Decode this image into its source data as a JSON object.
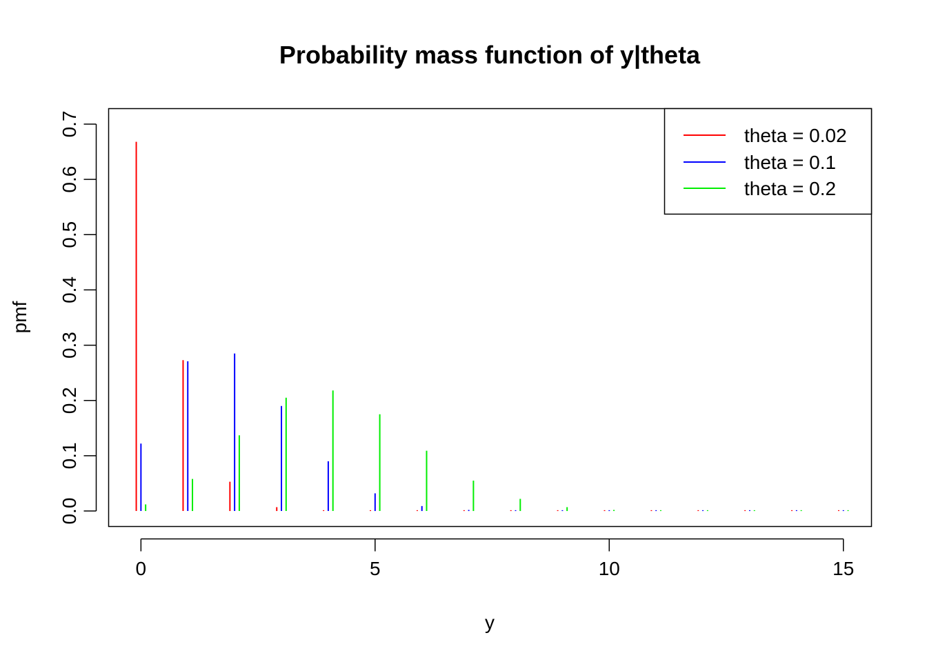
{
  "chart_data": {
    "type": "bar",
    "title": "Probability mass function of y|theta",
    "xlabel": "y",
    "ylabel": "pmf",
    "xlim": [
      -0.69,
      15.6
    ],
    "ylim": [
      -0.028,
      0.728
    ],
    "x_ticks": [
      "0",
      "5",
      "10",
      "15"
    ],
    "y_ticks": [
      "0.0",
      "0.1",
      "0.2",
      "0.3",
      "0.4",
      "0.5",
      "0.6",
      "0.7"
    ],
    "x": [
      0,
      1,
      2,
      3,
      4,
      5,
      6,
      7,
      8,
      9,
      10,
      11,
      12,
      13,
      14,
      15
    ],
    "legend_position": "top-right",
    "series": [
      {
        "name": "theta = 0.02",
        "color": "#ff0000",
        "values": [
          0.668,
          0.273,
          0.053,
          0.007,
          0.001,
          0.0,
          0.0,
          0.0,
          0.0,
          0.0,
          0.0,
          0.0,
          0.0,
          0.0,
          0.0,
          0.0
        ]
      },
      {
        "name": "theta = 0.1",
        "color": "#0000ff",
        "values": [
          0.122,
          0.271,
          0.285,
          0.19,
          0.09,
          0.032,
          0.009,
          0.002,
          0.0,
          0.0,
          0.0,
          0.0,
          0.0,
          0.0,
          0.0,
          0.0
        ]
      },
      {
        "name": "theta = 0.2",
        "color": "#00ee00",
        "values": [
          0.012,
          0.058,
          0.137,
          0.205,
          0.218,
          0.175,
          0.109,
          0.055,
          0.022,
          0.007,
          0.002,
          0.0,
          0.0,
          0.0,
          0.0,
          0.0
        ]
      }
    ]
  }
}
